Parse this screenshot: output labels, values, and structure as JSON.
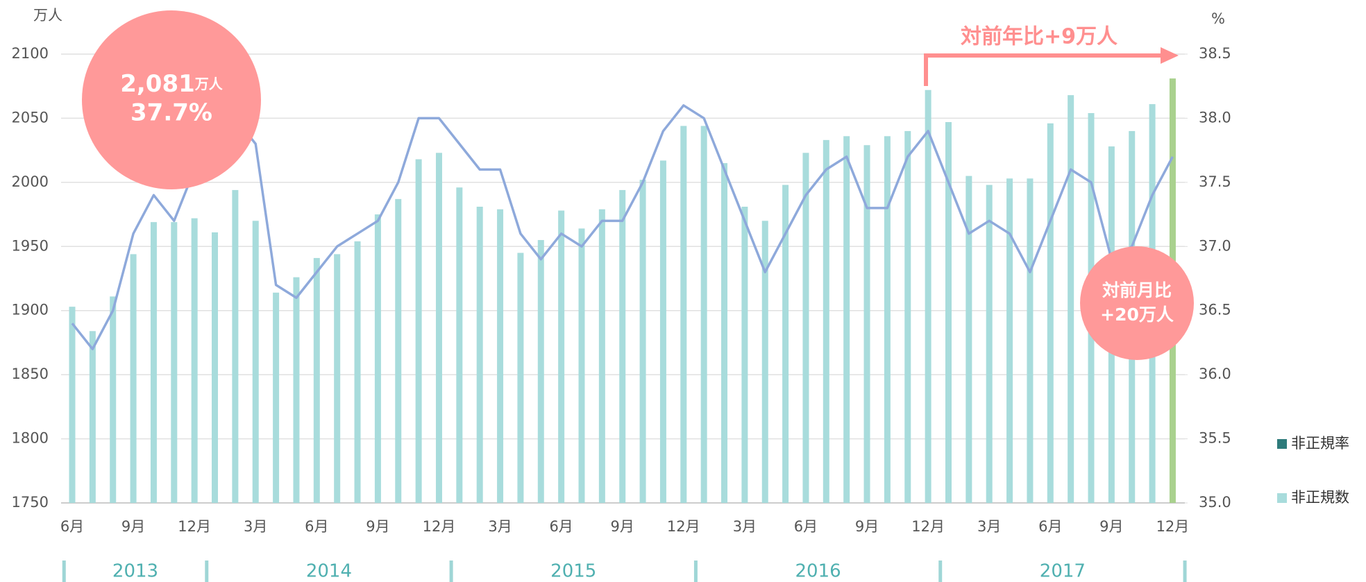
{
  "chart_data": {
    "type": "bar_line",
    "y_label": "万人",
    "y2_label": "%",
    "categories": [
      "6月",
      null,
      null,
      "9月",
      null,
      null,
      "12月",
      null,
      null,
      "3月",
      null,
      null,
      "6月",
      null,
      null,
      "9月",
      null,
      null,
      "12月",
      null,
      null,
      "3月",
      null,
      null,
      "6月",
      null,
      null,
      "9月",
      null,
      null,
      "12月",
      null,
      null,
      "3月",
      null,
      null,
      "6月",
      null,
      null,
      "9月",
      null,
      null,
      "12月",
      null,
      null,
      "3月",
      null,
      null,
      "6月",
      null,
      null,
      "9月",
      null,
      null,
      "12月"
    ],
    "years": [
      "2013",
      "2014",
      "2015",
      "2016",
      "2017"
    ],
    "series": [
      {
        "name": "非正規率",
        "type": "line",
        "axis": "y2",
        "color": "#8ea9db",
        "legend_color": "#2e7b7b",
        "values": [
          36.4,
          36.2,
          36.5,
          37.1,
          37.4,
          37.2,
          37.6,
          37.9,
          38.0,
          37.8,
          36.7,
          36.6,
          36.8,
          37.0,
          37.1,
          37.2,
          37.5,
          38.0,
          38.0,
          37.8,
          37.6,
          37.6,
          37.1,
          36.9,
          37.1,
          37.0,
          37.2,
          37.2,
          37.5,
          37.9,
          38.1,
          38.0,
          37.6,
          37.2,
          36.8,
          37.1,
          37.4,
          37.6,
          37.7,
          37.3,
          37.3,
          37.7,
          37.9,
          37.5,
          37.1,
          37.2,
          37.1,
          36.8,
          37.2,
          37.6,
          37.5,
          36.9,
          37.0,
          37.4,
          37.7
        ]
      },
      {
        "name": "非正規数",
        "type": "bar",
        "color": "#a8dcdc",
        "highlight_color": "#a9d18e",
        "values": [
          1903,
          1884,
          1911,
          1944,
          1969,
          1969,
          1972,
          1961,
          1994,
          1970,
          1914,
          1926,
          1941,
          1944,
          1954,
          1975,
          1987,
          2018,
          2023,
          1996,
          1981,
          1979,
          1945,
          1955,
          1978,
          1964,
          1979,
          1994,
          2002,
          2017,
          2044,
          2044,
          2015,
          1981,
          1970,
          1998,
          2023,
          2033,
          2036,
          2029,
          2036,
          2040,
          2072,
          2047,
          2005,
          1998,
          2003,
          2003,
          2046,
          2068,
          2054,
          2028,
          2040,
          2061,
          2081
        ]
      }
    ],
    "ylim": [
      1750,
      2100
    ],
    "yticks": [
      1750,
      1800,
      1850,
      1900,
      1950,
      2000,
      2050,
      2100
    ],
    "y2lim": [
      35,
      38.5
    ],
    "y2ticks": [
      {
        "value": 35,
        "label": "35.0"
      },
      35.5,
      {
        "value": 36,
        "label": "36.0"
      },
      36.5,
      {
        "value": 37,
        "label": "37.0"
      },
      37.5,
      {
        "value": 38,
        "label": "38.0"
      },
      38.5
    ],
    "grid": true,
    "annotations": {
      "latest": {
        "value": "2,081",
        "unit": "万人",
        "rate": "37.7%"
      },
      "mom": {
        "label": "対前月比",
        "value": "+20万人"
      },
      "yoy": "対前年比+9万人"
    }
  }
}
